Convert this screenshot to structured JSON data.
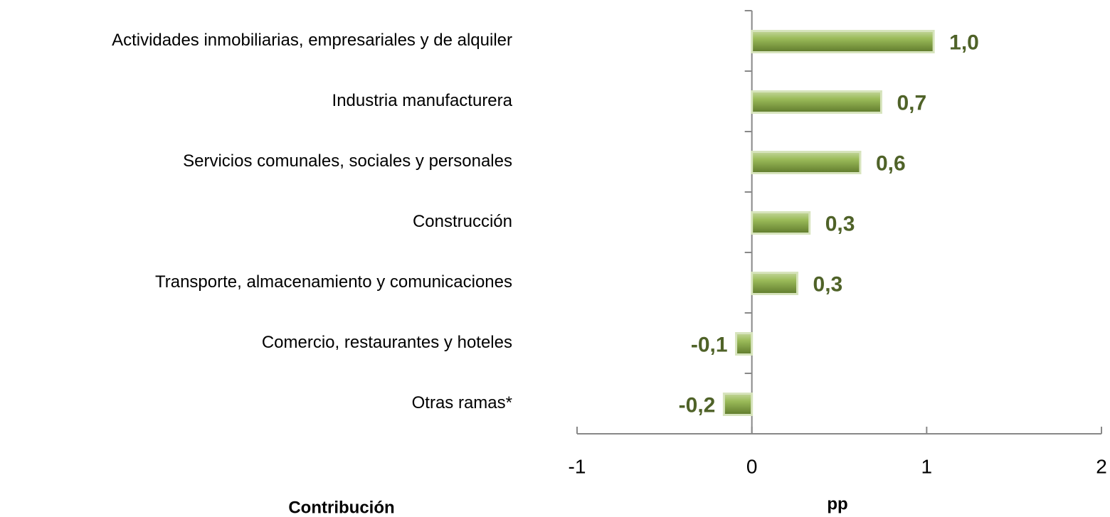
{
  "chart_data": {
    "type": "bar",
    "orientation": "horizontal",
    "categories": [
      "Actividades inmobiliarias, empresariales y de alquiler",
      "Industria manufacturera",
      "Servicios comunales, sociales y personales",
      "Construcción",
      "Transporte, almacenamiento y comunicaciones",
      "Comercio, restaurantes y hoteles",
      "Otras ramas*"
    ],
    "values": [
      1.04,
      0.74,
      0.62,
      0.33,
      0.26,
      -0.09,
      -0.16
    ],
    "value_labels": [
      "1,0",
      "0,7",
      "0,6",
      "0,3",
      "0,3",
      "-0,1",
      "-0,2"
    ],
    "color": "#8aab48",
    "xlim": [
      -1,
      2
    ],
    "xticks": [
      -1,
      0,
      1,
      2
    ],
    "y_axis_label": "Contribución",
    "x_axis_label": "pp"
  }
}
